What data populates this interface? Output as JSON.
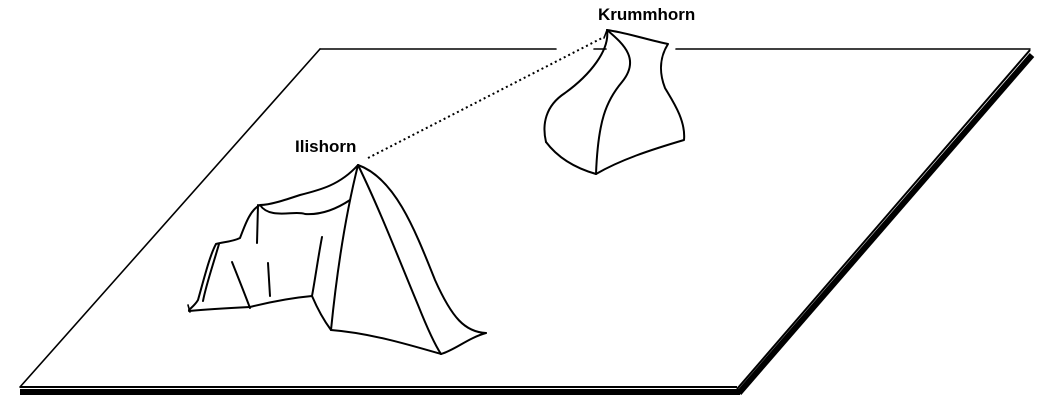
{
  "labels": {
    "krummhorn": "Krummhorn",
    "ilishorn": "Ilishorn"
  },
  "colors": {
    "line": "#000000",
    "background": "#ffffff"
  }
}
